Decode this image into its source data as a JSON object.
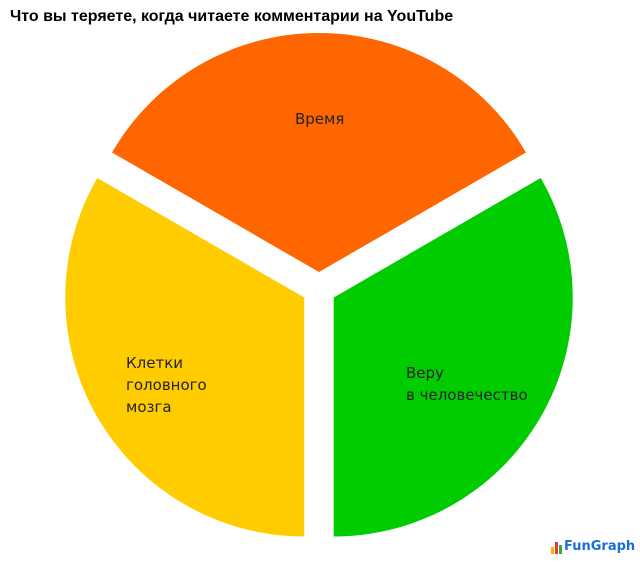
{
  "chart_data": {
    "type": "pie",
    "title": "Что вы теряете, когда читаете комментарии на YouTube",
    "slices": [
      {
        "label": "Время",
        "value": 1,
        "color": "#ff6600"
      },
      {
        "label": "Веру\nв человечество",
        "value": 1,
        "color": "#00cc00"
      },
      {
        "label": "Клетки\nголовного\nмозга",
        "value": 1,
        "color": "#ffcc00"
      }
    ],
    "exploded": true,
    "legend": "none"
  },
  "logo": {
    "text": "FunGraph"
  }
}
